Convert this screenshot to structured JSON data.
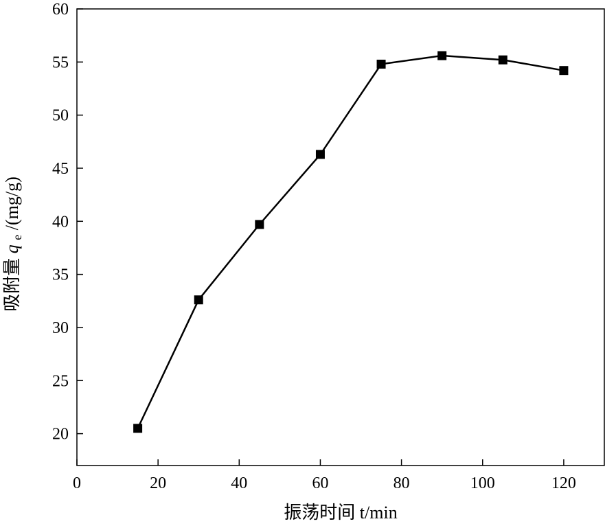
{
  "chart_data": {
    "type": "line",
    "title": "",
    "xlabel": "振荡时间 t/min",
    "ylabel_main": "吸附量 ",
    "ylabel_symbol": "q",
    "ylabel_subscript": "e",
    "ylabel_unit": "/(mg/g)",
    "xlim": [
      0,
      130
    ],
    "ylim": [
      17,
      60
    ],
    "x_ticks": [
      0,
      20,
      40,
      60,
      80,
      100,
      120
    ],
    "y_ticks": [
      20,
      25,
      30,
      35,
      40,
      45,
      50,
      55,
      60
    ],
    "grid": false,
    "marker": "square",
    "color": "#000000",
    "series": [
      {
        "x": [
          15,
          30,
          45,
          60,
          75,
          90,
          105,
          120
        ],
        "y": [
          20.5,
          32.6,
          39.7,
          46.3,
          54.8,
          55.6,
          55.2,
          54.2
        ]
      }
    ]
  }
}
